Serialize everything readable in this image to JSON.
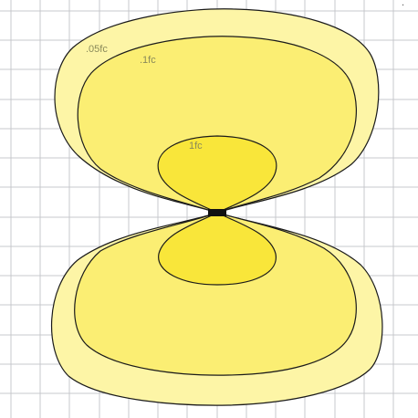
{
  "corner_mark": ".",
  "contours": [
    {
      "label": ".05fc",
      "color": "#fdf5a6"
    },
    {
      "label": ".1fc",
      "color": "#fbee73"
    },
    {
      "label": "1fc",
      "color": "#f9e63a"
    }
  ],
  "fixture": {
    "icon": "luminaire-fixture",
    "color": "#111111"
  },
  "grid": {
    "color": "#c7c9cc"
  }
}
